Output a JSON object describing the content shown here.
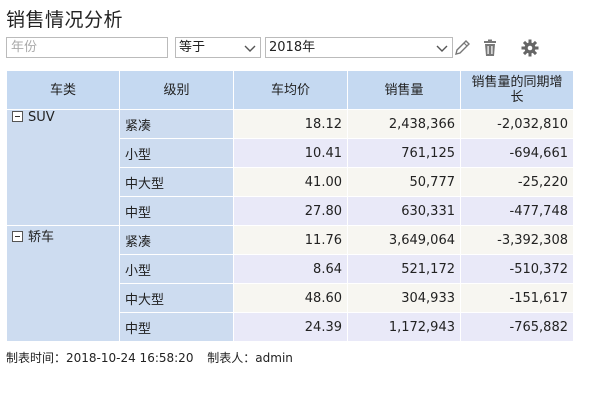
{
  "report": {
    "title": "销售情况分析"
  },
  "filter": {
    "field_placeholder": "年份",
    "operator": "等于",
    "value": "2018年"
  },
  "table": {
    "headers": [
      "车类",
      "级别",
      "车均价",
      "销售量",
      "销售量的同期增长"
    ],
    "groups": [
      {
        "name": "SUV",
        "rows": [
          {
            "level": "紧凑",
            "avg_price": "18.12",
            "sales": "2,438,366",
            "yoy": "-2,032,810"
          },
          {
            "level": "小型",
            "avg_price": "10.41",
            "sales": "761,125",
            "yoy": "-694,661"
          },
          {
            "level": "中大型",
            "avg_price": "41.00",
            "sales": "50,777",
            "yoy": "-25,220"
          },
          {
            "level": "中型",
            "avg_price": "27.80",
            "sales": "630,331",
            "yoy": "-477,748"
          }
        ]
      },
      {
        "name": "轿车",
        "rows": [
          {
            "level": "紧凑",
            "avg_price": "11.76",
            "sales": "3,649,064",
            "yoy": "-3,392,308"
          },
          {
            "level": "小型",
            "avg_price": "8.64",
            "sales": "521,172",
            "yoy": "-510,372"
          },
          {
            "level": "中大型",
            "avg_price": "48.60",
            "sales": "304,933",
            "yoy": "-151,617"
          },
          {
            "level": "中型",
            "avg_price": "24.39",
            "sales": "1,172,943",
            "yoy": "-765,882"
          }
        ]
      }
    ]
  },
  "footer": {
    "made_time": "制表时间：2018-10-24 16:58:20",
    "made_by": "制表人：admin"
  },
  "icons": {
    "edit": "pencil-icon",
    "delete": "trash-icon",
    "settings": "gear-icon",
    "collapse": "minus-box-icon",
    "dropdown": "chevron-down-icon"
  }
}
